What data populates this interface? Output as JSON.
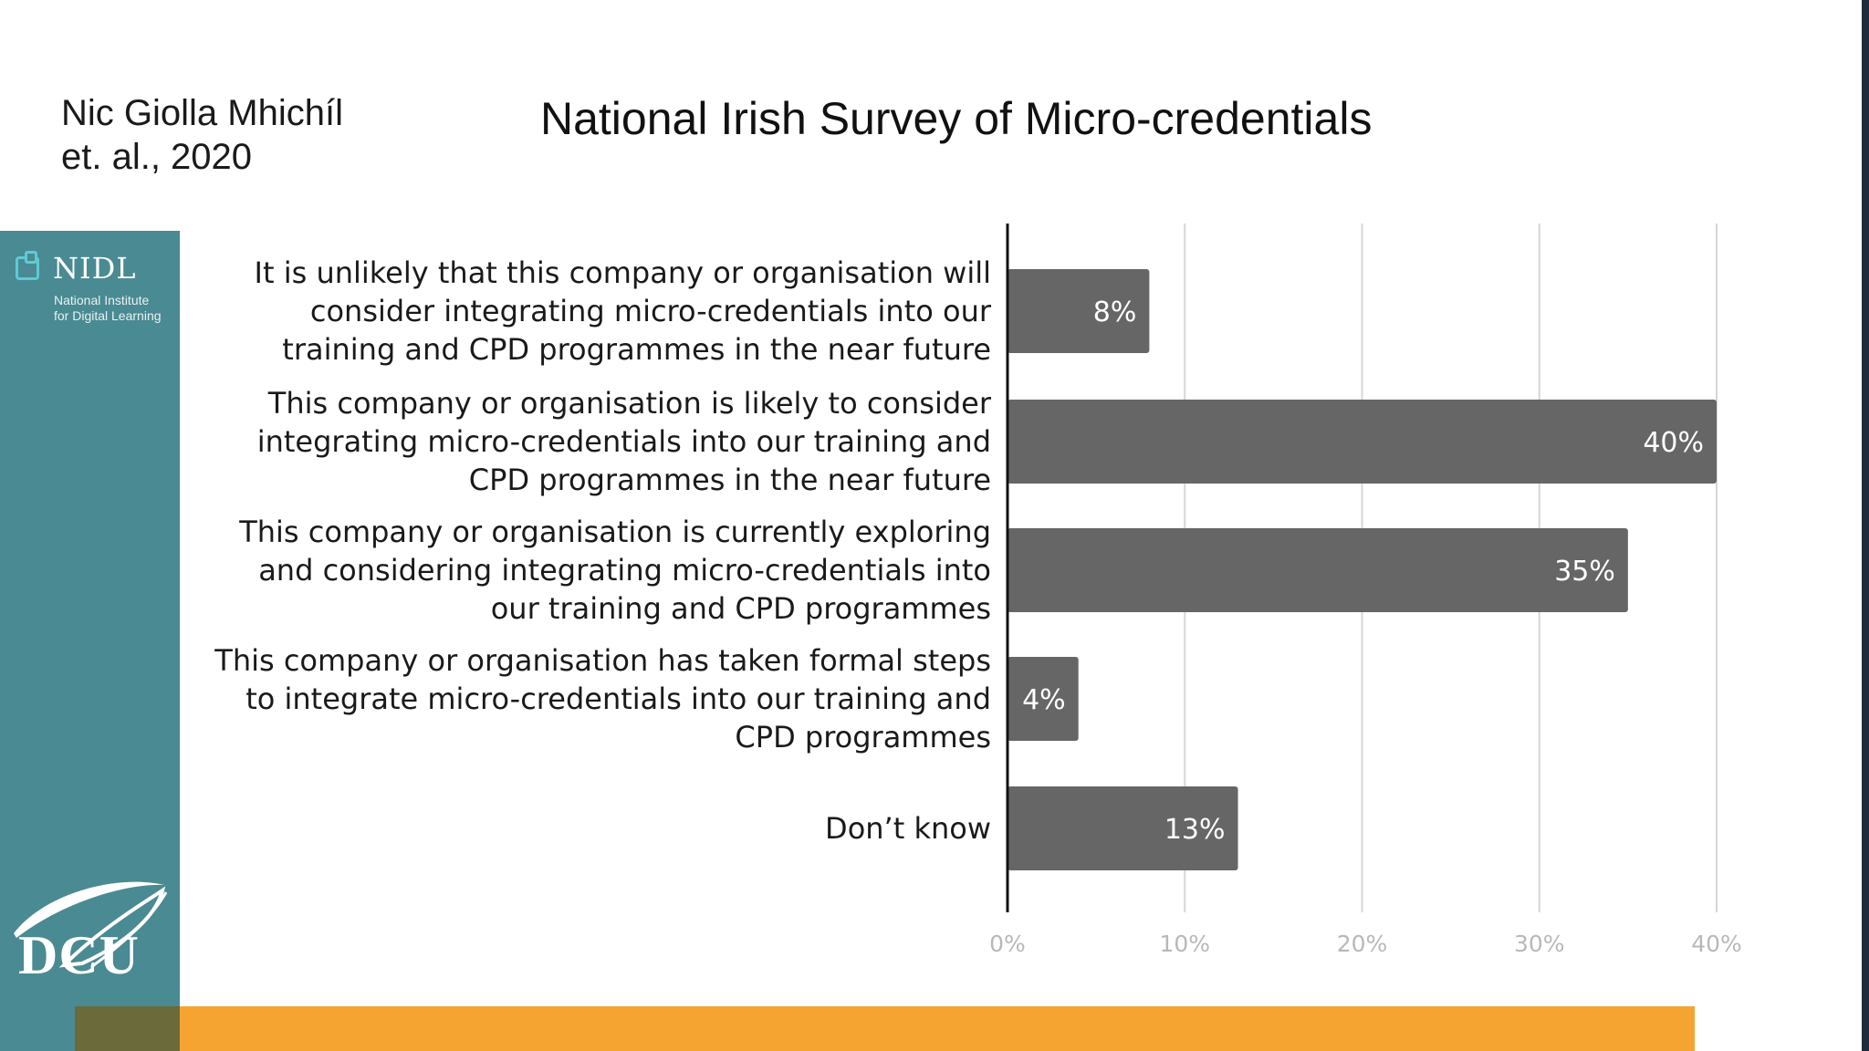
{
  "header": {
    "citation_line1": "Nic Giolla Mhichíl",
    "citation_line2": "et. al., 2020"
  },
  "sidebar": {
    "nidl_name": "NIDL",
    "nidl_sub_line1": "National Institute",
    "nidl_sub_line2": "for Digital Learning",
    "dcu_name": "DCU"
  },
  "colors": {
    "bar": "#666666",
    "gridline": "#d6d6d6",
    "axis": "#111111",
    "sidebar": "#4a8a92",
    "accent_bar": "#f5a431"
  },
  "chart_data": {
    "type": "bar",
    "orientation": "horizontal",
    "title": "National Irish Survey of Micro-credentials",
    "categories": [
      [
        "It is unlikely that this company or organisation will",
        "consider integrating micro-credentials into our",
        "training and CPD programmes in the near future"
      ],
      [
        "This company or organisation is likely to consider",
        "integrating micro-credentials into our training and",
        "CPD programmes in the near future"
      ],
      [
        "This company or organisation is currently exploring",
        "and considering integrating micro-credentials into",
        "our training and CPD programmes"
      ],
      [
        "This company or organisation has taken formal steps",
        "to integrate micro-credentials into our training and",
        "CPD programmes"
      ],
      [
        "Don’t know"
      ]
    ],
    "values": [
      8,
      40,
      35,
      4,
      13
    ],
    "value_labels": [
      "8%",
      "40%",
      "35%",
      "4%",
      "13%"
    ],
    "xlim": [
      0,
      40
    ],
    "xticks": [
      0,
      10,
      20,
      30,
      40
    ],
    "xtick_labels": [
      "0%",
      "10%",
      "20%",
      "30%",
      "40%"
    ],
    "grid": true,
    "xlabel": "",
    "ylabel": ""
  }
}
